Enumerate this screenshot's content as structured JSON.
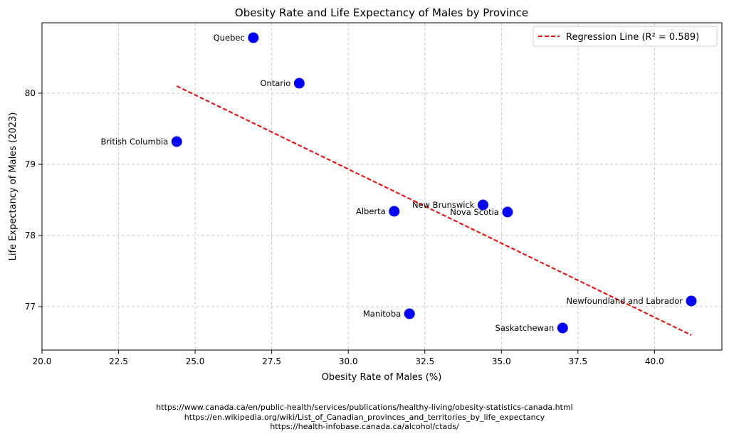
{
  "chart_data": {
    "type": "scatter",
    "title": "Obesity Rate and Life Expectancy of Males by Province",
    "xlabel": "Obesity Rate of Males (%)",
    "ylabel": "Life Expectancy of Males (2023)",
    "xlim": [
      20.0,
      42.2
    ],
    "ylim": [
      76.39,
      80.99
    ],
    "xticks": [
      20.0,
      22.5,
      25.0,
      27.5,
      30.0,
      32.5,
      35.0,
      37.5,
      40.0
    ],
    "xtick_labels": [
      "20.0",
      "22.5",
      "25.0",
      "27.5",
      "30.0",
      "32.5",
      "35.0",
      "37.5",
      "40.0"
    ],
    "yticks": [
      77,
      78,
      79,
      80
    ],
    "ytick_labels": [
      "77",
      "78",
      "79",
      "80"
    ],
    "grid": true,
    "legend_position": "top-right",
    "point_color": "#0000ff",
    "points": [
      {
        "label": "Quebec",
        "x": 26.9,
        "y": 80.78
      },
      {
        "label": "Ontario",
        "x": 28.4,
        "y": 80.14
      },
      {
        "label": "British Columbia",
        "x": 24.4,
        "y": 79.32
      },
      {
        "label": "Alberta",
        "x": 31.5,
        "y": 78.34
      },
      {
        "label": "New Brunswick",
        "x": 34.4,
        "y": 78.43
      },
      {
        "label": "Nova Scotia",
        "x": 35.2,
        "y": 78.33
      },
      {
        "label": "Manitoba",
        "x": 32.0,
        "y": 76.9
      },
      {
        "label": "Saskatchewan",
        "x": 37.0,
        "y": 76.7
      },
      {
        "label": "Newfoundland and Labrador",
        "x": 41.2,
        "y": 77.08
      }
    ],
    "regression": {
      "legend_label": "Regression Line (R² = 0.589)",
      "color": "#ff0000",
      "style": "dashed",
      "start": {
        "x": 24.4,
        "y": 80.1
      },
      "end": {
        "x": 41.2,
        "y": 76.6
      }
    }
  },
  "sources": [
    "https://www.canada.ca/en/public-health/services/publications/healthy-living/obesity-statistics-canada.html",
    "https://en.wikipedia.org/wiki/List_of_Canadian_provinces_and_territories_by_life_expectancy",
    "https://health-infobase.canada.ca/alcohol/ctads/"
  ]
}
